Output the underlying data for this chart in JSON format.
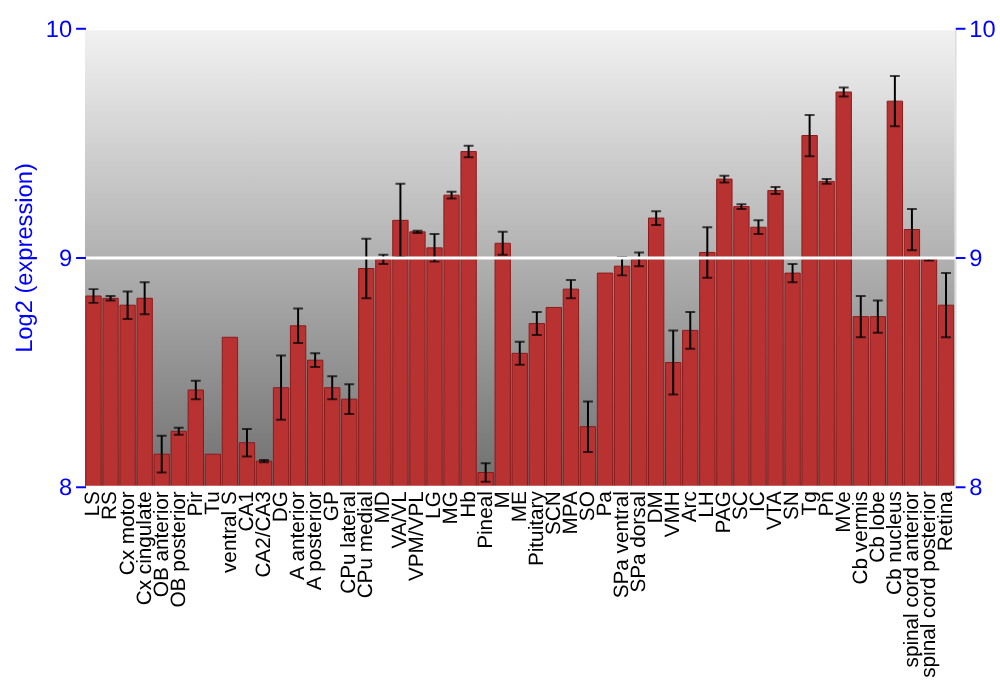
{
  "chart_data": {
    "type": "bar",
    "ylabel": "Log2 (expression)",
    "categories": [
      "LS",
      "RS",
      "Cx motor",
      "Cx cingulate",
      "OB anterior",
      "OB posterior",
      "Pir",
      "Tu",
      "ventral S",
      "CA1",
      "CA2/CA3",
      "DG",
      "A anterior",
      "A posterior",
      "GP",
      "CPu lateral",
      "CPu medial",
      "MD",
      "VA/VL",
      "VPM/VPL",
      "LG",
      "MG",
      "Hb",
      "Pineal",
      "M",
      "ME",
      "Pituitary",
      "SCN",
      "MPA",
      "SO",
      "Pa",
      "SPa ventral",
      "SPa dorsal",
      "DM",
      "VMH",
      "Arc",
      "LH",
      "PAG",
      "SC",
      "IC",
      "VTA",
      "SN",
      "Tg",
      "Pn",
      "MVe",
      "Cb vermis",
      "Cb lobe",
      "Cb nucleus",
      "spinal cord anterior",
      "spinal cord posterior",
      "Retina"
    ],
    "values": [
      8.83,
      8.82,
      8.79,
      8.82,
      8.14,
      8.24,
      8.42,
      8.14,
      8.65,
      8.19,
      8.11,
      8.43,
      8.7,
      8.55,
      8.43,
      8.38,
      8.95,
      8.99,
      9.16,
      9.11,
      9.04,
      9.27,
      9.46,
      8.06,
      9.06,
      8.58,
      8.71,
      8.78,
      8.86,
      8.26,
      8.93,
      8.96,
      8.99,
      9.17,
      8.54,
      8.68,
      9.02,
      9.34,
      9.22,
      9.13,
      9.29,
      8.93,
      9.53,
      9.33,
      9.72,
      8.74,
      8.74,
      9.68,
      9.12,
      8.99,
      8.79
    ],
    "errors": [
      0.03,
      0.01,
      0.06,
      0.07,
      0.08,
      0.015,
      0.04,
      null,
      null,
      0.06,
      0.005,
      0.14,
      0.075,
      0.03,
      0.05,
      0.065,
      0.13,
      0.02,
      0.16,
      0.005,
      0.06,
      0.015,
      0.025,
      0.04,
      0.05,
      0.05,
      0.05,
      null,
      0.04,
      0.11,
      null,
      0.04,
      0.03,
      0.03,
      0.14,
      0.08,
      0.11,
      0.015,
      0.01,
      0.03,
      0.015,
      0.04,
      0.09,
      0.01,
      0.02,
      0.09,
      0.07,
      0.11,
      0.09,
      0.005,
      0.14
    ],
    "color": "#b83232",
    "ylim": [
      8,
      10
    ],
    "yticks": [
      8,
      9,
      10
    ],
    "y2lim": [
      8,
      10
    ],
    "y2ticks": [
      8,
      9,
      10
    ],
    "grid": "y"
  }
}
